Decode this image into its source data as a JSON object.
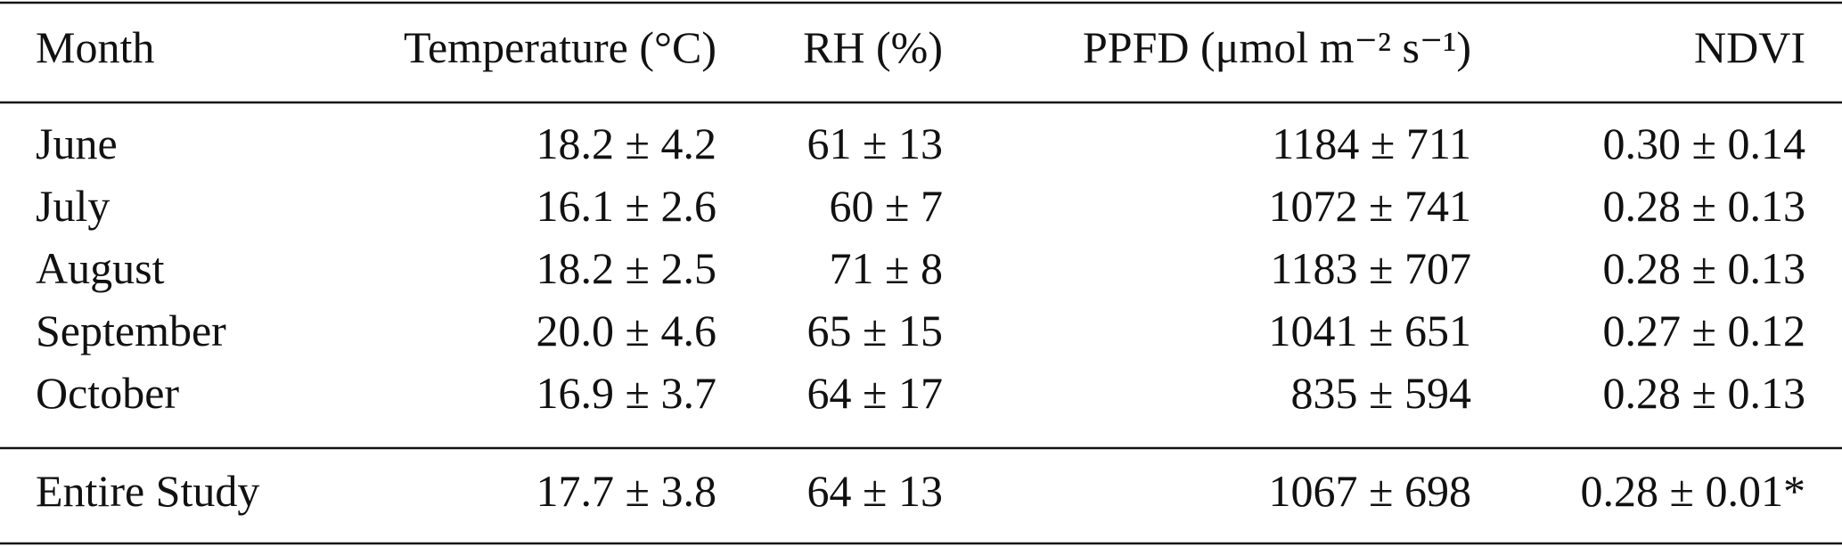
{
  "table": {
    "header": [
      "Month",
      "Temperature (°C)",
      "RH (%)",
      "PPFD (μmol m⁻² s⁻¹)",
      "NDVI"
    ],
    "rows": [
      [
        "June",
        "18.2 ± 4.2",
        "61 ± 13",
        "1184 ± 711",
        "0.30 ± 0.14"
      ],
      [
        "July",
        "16.1 ± 2.6",
        "60 ± 7",
        "1072 ± 741",
        "0.28 ± 0.13"
      ],
      [
        "August",
        "18.2 ± 2.5",
        "71 ± 8",
        "1183 ± 707",
        "0.28 ± 0.13"
      ],
      [
        "September",
        "20.0 ± 4.6",
        "65 ± 15",
        "1041 ± 651",
        "0.27 ± 0.12"
      ],
      [
        "October",
        "16.9 ± 3.7",
        "64 ± 17",
        "835 ± 594",
        "0.28 ± 0.13"
      ]
    ],
    "footer": [
      "Entire Study",
      "17.7 ± 3.8",
      "64 ± 13",
      "1067 ± 698",
      "0.28 ± 0.01*"
    ]
  }
}
